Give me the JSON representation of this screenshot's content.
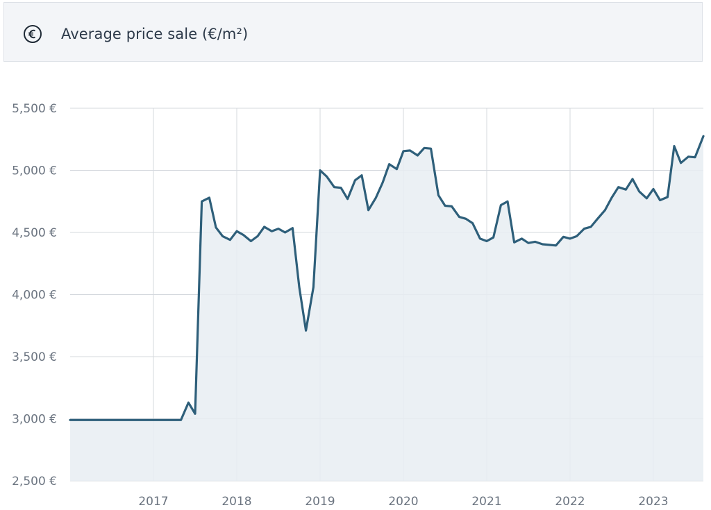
{
  "header": {
    "icon": "euro-icon",
    "title": "Average price sale (€/m²)"
  },
  "colors": {
    "line": "#2e5f7a",
    "area": "#e8edf2",
    "grid": "#d4d8de",
    "header_bg": "#f3f5f8"
  },
  "chart_data": {
    "type": "area",
    "title": "Average price sale (€/m²)",
    "xlabel": "",
    "ylabel": "",
    "ylim": [
      2500,
      5500
    ],
    "xlim": [
      2016.0,
      2023.6
    ],
    "grid": true,
    "yticks": [
      2500,
      3000,
      3500,
      4000,
      4500,
      5000,
      5500
    ],
    "ytick_labels": [
      "2,500 €",
      "3,000 €",
      "3,500 €",
      "4,000 €",
      "4,500 €",
      "5,000 €",
      "5,500 €"
    ],
    "xticks": [
      2017,
      2018,
      2019,
      2020,
      2021,
      2022,
      2023
    ],
    "xtick_labels": [
      "2017",
      "2018",
      "2019",
      "2020",
      "2021",
      "2022",
      "2023"
    ],
    "series": [
      {
        "x": [
          2016.0,
          2016.5,
          2017.0,
          2017.33,
          2017.42,
          2017.5,
          2017.58,
          2017.67,
          2017.75,
          2017.83,
          2017.92,
          2018.0,
          2018.08,
          2018.17,
          2018.25,
          2018.33,
          2018.42,
          2018.5,
          2018.58,
          2018.67,
          2018.75,
          2018.83,
          2018.92,
          2019.0,
          2019.08,
          2019.17,
          2019.25,
          2019.33,
          2019.42,
          2019.5,
          2019.58,
          2019.67,
          2019.75,
          2019.83,
          2019.92,
          2020.0,
          2020.08,
          2020.17,
          2020.25,
          2020.33,
          2020.42,
          2020.5,
          2020.58,
          2020.67,
          2020.75,
          2020.83,
          2020.92,
          2021.0,
          2021.08,
          2021.17,
          2021.25,
          2021.33,
          2021.42,
          2021.5,
          2021.58,
          2021.67,
          2021.75,
          2021.83,
          2021.92,
          2022.0,
          2022.08,
          2022.17,
          2022.25,
          2022.33,
          2022.42,
          2022.5,
          2022.58,
          2022.67,
          2022.75,
          2022.83,
          2022.92,
          2023.0,
          2023.08,
          2023.17,
          2023.25,
          2023.33,
          2023.42,
          2023.5,
          2023.6
        ],
        "values": [
          2990,
          2990,
          2990,
          2990,
          3130,
          3040,
          4750,
          4780,
          4540,
          4470,
          4440,
          4510,
          4480,
          4430,
          4470,
          4545,
          4510,
          4530,
          4500,
          4535,
          4060,
          3710,
          4060,
          5000,
          4950,
          4865,
          4860,
          4770,
          4920,
          4960,
          4680,
          4780,
          4900,
          5050,
          5010,
          5155,
          5160,
          5120,
          5180,
          5175,
          4800,
          4715,
          4710,
          4625,
          4610,
          4575,
          4450,
          4430,
          4460,
          4720,
          4750,
          4420,
          4450,
          4415,
          4425,
          4405,
          4400,
          4395,
          4465,
          4450,
          4470,
          4530,
          4545,
          4610,
          4680,
          4780,
          4865,
          4845,
          4930,
          4830,
          4775,
          4850,
          4760,
          4785,
          5195,
          5060,
          5110,
          5105,
          5275
        ]
      }
    ]
  }
}
